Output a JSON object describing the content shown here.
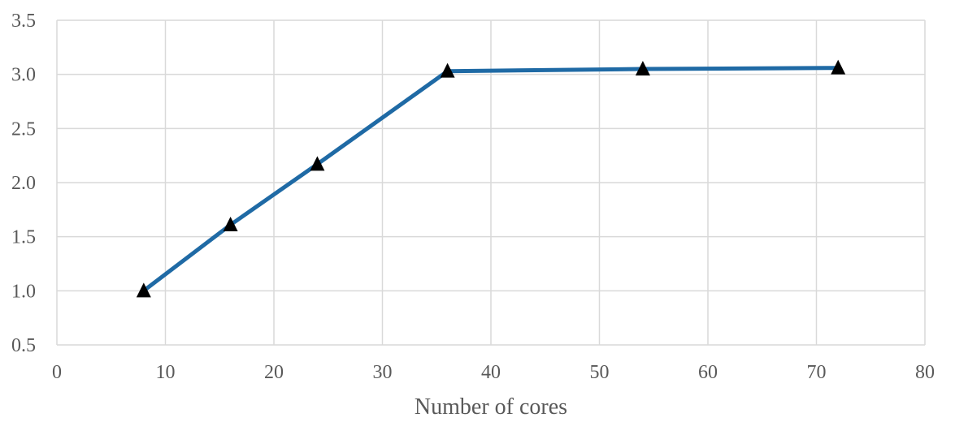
{
  "chart_data": {
    "type": "line",
    "title": "",
    "xlabel": "Number of cores",
    "ylabel": "",
    "xlim": [
      0,
      80
    ],
    "ylim": [
      0.5,
      3.5
    ],
    "xticks": [
      0,
      10,
      20,
      30,
      40,
      50,
      60,
      70,
      80
    ],
    "yticks": [
      "0.5",
      "1.0",
      "1.5",
      "2.0",
      "2.5",
      "3.0",
      "3.5"
    ],
    "grid": true,
    "legend": "none",
    "series": [
      {
        "color": "#1f6aa5",
        "marker": "triangle",
        "marker_color": "#000000",
        "x": [
          8,
          16,
          24,
          36,
          54,
          72
        ],
        "y": [
          1.0,
          1.61,
          2.17,
          3.03,
          3.05,
          3.06
        ]
      }
    ]
  }
}
